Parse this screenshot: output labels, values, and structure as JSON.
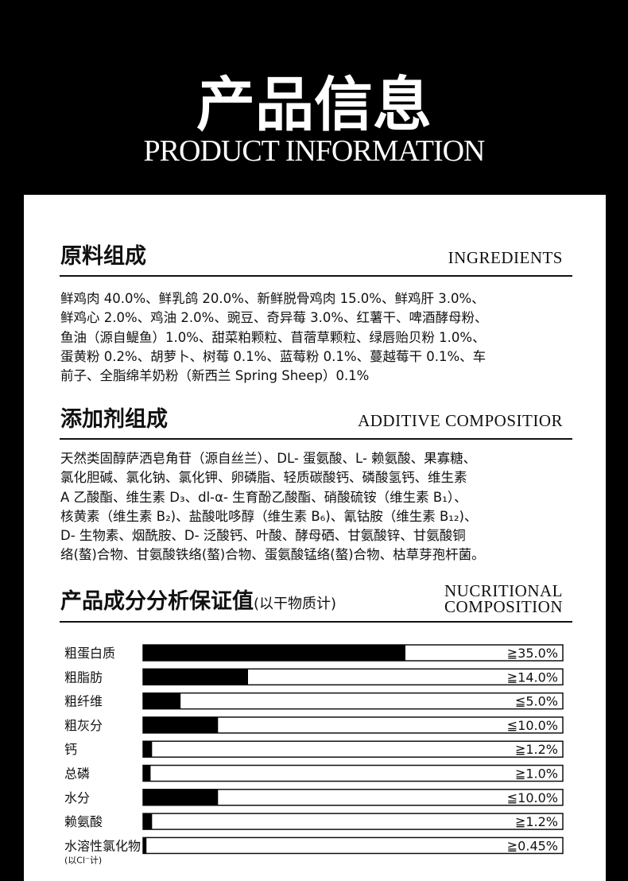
{
  "header": {
    "title": "产品信息",
    "subtitle": "PRODUCT INFORMATION"
  },
  "ingredients": {
    "title": "原料组成",
    "title_en": "INGREDIENTS",
    "lines": [
      "鲜鸡肉 40.0%、鲜乳鸽 20.0%、新鲜脱骨鸡肉 15.0%、鲜鸡肝 3.0%、",
      "鲜鸡心 2.0%、鸡油 2.0%、豌豆、奇异莓 3.0%、红薯干、啤酒酵母粉、",
      "鱼油（源自鳀鱼）1.0%、甜菜粕颗粒、苜蓿草颗粒、绿唇贻贝粉 1.0%、",
      "蛋黄粉 0.2%、胡萝卜、树莓 0.1%、蓝莓粉 0.1%、蔓越莓干 0.1%、车",
      "前子、全脂绵羊奶粉（新西兰 Spring Sheep）0.1%"
    ]
  },
  "additives": {
    "title": "添加剂组成",
    "title_en": "ADDITIVE COMPOSITIOR",
    "lines": [
      "天然类固醇萨洒皂角苷（源自丝兰）、DL- 蛋氨酸、L- 赖氨酸、果寡糖、",
      "氯化胆碱、氯化钠、氯化钾、卵磷脂、轻质碳酸钙、磷酸氢钙、维生素",
      "A 乙酸酯、维生素 D₃、dl-α- 生育酚乙酸酯、硝酸硫铵（维生素 B₁）、",
      "核黄素（维生素 B₂)、盐酸吡哆醇（维生素 B₆)、氰钴胺（维生素 B₁₂)、",
      "D- 生物素、烟酰胺、D- 泛酸钙、叶酸、酵母硒、甘氨酸锌、甘氨酸铜",
      "络(螯)合物、甘氨酸铁络(螯)合物、蛋氨酸锰络(螯)合物、枯草芽孢杆菌。"
    ]
  },
  "analysis": {
    "title": "产品成分分析保证值",
    "note": "(以干物质计)",
    "title_en_1": "NUCRITIONAL",
    "title_en_2": "COMPOSITION"
  },
  "chart_data": {
    "type": "bar",
    "orientation": "horizontal",
    "categories": [
      "粗蛋白质",
      "粗脂肪",
      "粗纤维",
      "粗灰分",
      "钙",
      "总磷",
      "水分",
      "赖氨酸",
      "水溶性氯化物"
    ],
    "values": [
      35.0,
      14.0,
      5.0,
      10.0,
      1.2,
      1.0,
      10.0,
      1.2,
      0.45
    ],
    "value_labels": [
      "≧35.0%",
      "≧14.0%",
      "≦5.0%",
      "≦10.0%",
      "≧1.2%",
      "≧1.0%",
      "≦10.0%",
      "≧1.2%",
      "≧0.45%"
    ],
    "category_note": "(以Cl⁻计)",
    "color": "#000000",
    "xlim": [
      0,
      56
    ]
  }
}
